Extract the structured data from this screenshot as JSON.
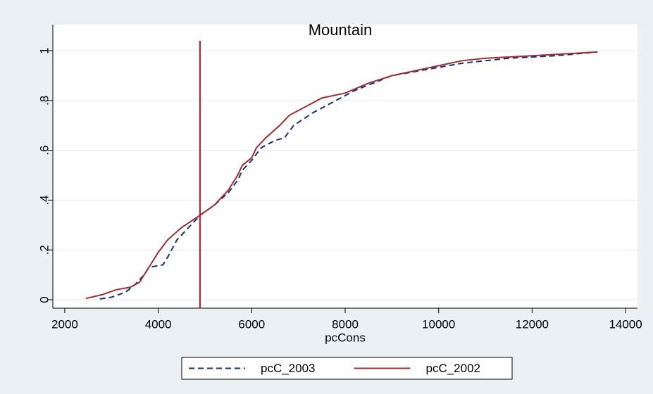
{
  "chart_data": {
    "type": "line",
    "title": "Mountain",
    "xlabel": "pcCons",
    "xlim": [
      1745,
      14255
    ],
    "ylim": [
      -0.034,
      1.105
    ],
    "xticks": [
      2000,
      4000,
      6000,
      8000,
      10000,
      12000,
      14000
    ],
    "yticks": [
      0,
      {
        "value": 0.2,
        "label": ".2"
      },
      {
        "value": 0.4,
        "label": ".4"
      },
      {
        "value": 0.6,
        "label": ".6"
      },
      {
        "value": 0.8,
        "label": ".8"
      },
      1
    ],
    "grid": true,
    "legend": "bottom",
    "vline": {
      "x": 4894,
      "color": "#c8102e"
    },
    "series": [
      {
        "name": "pcC_2003",
        "color": "#1a2f6e",
        "dash": true,
        "x": [
          2750,
          3000,
          3300,
          3500,
          3700,
          3800,
          4100,
          4200,
          4400,
          4600,
          4900,
          5200,
          5500,
          5700,
          5800,
          6000,
          6200,
          6500,
          6700,
          6900,
          7300,
          7800,
          8200,
          8600,
          9000,
          9600,
          10500,
          11500,
          12500,
          13400
        ],
        "values": [
          0.003,
          0.01,
          0.03,
          0.06,
          0.1,
          0.13,
          0.14,
          0.17,
          0.24,
          0.28,
          0.34,
          0.38,
          0.43,
          0.48,
          0.52,
          0.56,
          0.61,
          0.64,
          0.65,
          0.7,
          0.75,
          0.8,
          0.84,
          0.87,
          0.9,
          0.92,
          0.95,
          0.97,
          0.98,
          0.995
        ]
      },
      {
        "name": "pcC_2002",
        "color": "#9a2f35",
        "dash": false,
        "x": [
          2450,
          2800,
          3100,
          3400,
          3600,
          3800,
          4000,
          4200,
          4500,
          4900,
          5200,
          5500,
          5700,
          5800,
          6000,
          6100,
          6300,
          6600,
          6800,
          7100,
          7500,
          8000,
          8500,
          9000,
          9500,
          10000,
          10500,
          11000,
          12000,
          13400
        ],
        "values": [
          0.005,
          0.02,
          0.04,
          0.05,
          0.07,
          0.13,
          0.19,
          0.24,
          0.29,
          0.34,
          0.38,
          0.44,
          0.5,
          0.54,
          0.57,
          0.61,
          0.65,
          0.7,
          0.74,
          0.77,
          0.81,
          0.83,
          0.87,
          0.9,
          0.92,
          0.94,
          0.96,
          0.97,
          0.98,
          0.995
        ]
      }
    ]
  }
}
